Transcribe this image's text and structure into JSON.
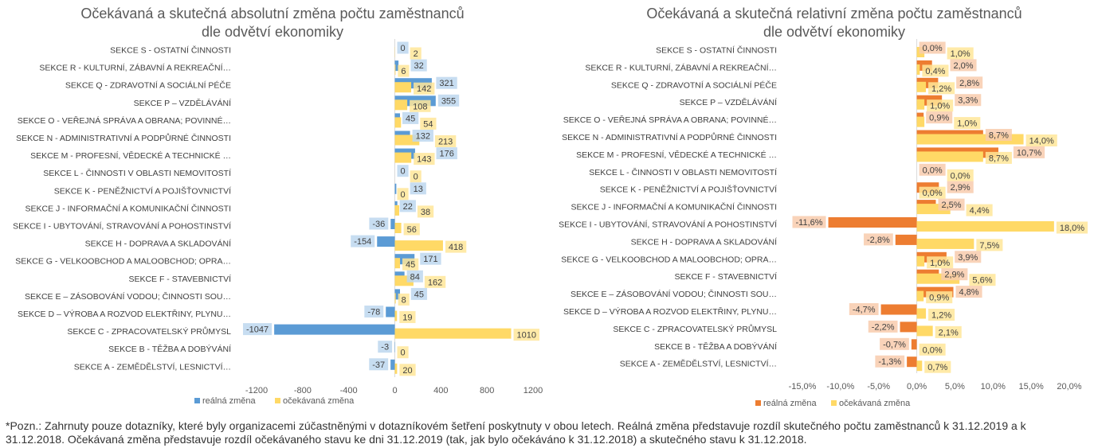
{
  "chart_data": [
    {
      "type": "bar",
      "orientation": "horizontal",
      "title_lines": [
        "Očekávaná a skutečná absolutní změna počtu zaměstnanců",
        "dle odvětví ekonomiky"
      ],
      "categories": [
        "SEKCE S - OSTATNÍ ČINNOSTI",
        "SEKCE R - KULTURNÍ, ZÁBAVNÍ A REKREAČNÍ…",
        "SEKCE Q - ZDRAVOTNÍ A SOCIÁLNÍ PÉČE",
        "SEKCE P – VZDĚLÁVÁNÍ",
        "SEKCE O - VEŘEJNÁ SPRÁVA A OBRANA; POVINNÉ…",
        "SEKCE N - ADMINISTRATIVNÍ A PODPŮRNÉ ČINNOSTI",
        "SEKCE M - PROFESNÍ, VĚDECKÉ A TECHNICKÉ …",
        "SEKCE L - ČINNOSTI V OBLASTI NEMOVITOSTÍ",
        "SEKCE K - PENĚŽNICTVÍ A POJIŠŤOVNICTVÍ",
        "SEKCE J - INFORMAČNÍ A KOMUNIKAČNÍ ČINNOSTI",
        "SEKCE I - UBYTOVÁNÍ, STRAVOVÁNÍ A POHOSTINSTVÍ",
        "SEKCE H - DOPRAVA A SKLADOVÁNÍ",
        "SEKCE G - VELKOOBCHOD A MALOOBCHOD; OPRA…",
        "SEKCE F - STAVEBNICTVÍ",
        "SEKCE E – ZÁSOBOVÁNÍ VODOU; ČINNOSTI SOU…",
        "SEKCE D – VÝROBA A ROZVOD ELEKTŘINY, PLYNU…",
        "SEKCE C - ZPRACOVATELSKÝ PRŮMYSL",
        "SEKCE B - TĚŽBA A DOBÝVÁNÍ",
        "SEKCE A - ZEMĚDĚLSTVÍ, LESNICTVÍ…"
      ],
      "series": [
        {
          "name": "reálná změna",
          "color": "#5b9bd5",
          "label_color": "#bdd7ee",
          "values": [
            0,
            32,
            321,
            355,
            45,
            132,
            176,
            0,
            13,
            22,
            -36,
            -154,
            171,
            84,
            45,
            -78,
            -1047,
            -3,
            -37
          ]
        },
        {
          "name": "očekávaná změna",
          "color": "#ffd966",
          "label_color": "#ffe699",
          "values": [
            2,
            6,
            142,
            108,
            54,
            213,
            143,
            0,
            0,
            38,
            56,
            418,
            45,
            162,
            8,
            19,
            1010,
            0,
            20
          ]
        }
      ],
      "xlim": [
        -1200,
        1200
      ],
      "xticks": [
        -1200,
        -800,
        -400,
        0,
        400,
        800,
        1200
      ],
      "xtick_labels": [
        "-1200",
        "-800",
        "-400",
        "0",
        "400",
        "800",
        "1200"
      ],
      "grid": false,
      "legend": "bottom"
    },
    {
      "type": "bar",
      "orientation": "horizontal",
      "title_lines": [
        "Očekávaná a skutečná relativní změna počtu zaměstnanců",
        "dle odvětví ekonomiky"
      ],
      "categories": [
        "SEKCE S - OSTATNÍ ČINNOSTI",
        "SEKCE R - KULTURNÍ, ZÁBAVNÍ A REKREAČNÍ…",
        "SEKCE Q - ZDRAVOTNÍ A SOCIÁLNÍ PÉČE",
        "SEKCE P – VZDĚLÁVÁNÍ",
        "SEKCE O - VEŘEJNÁ SPRÁVA A OBRANA; POVINNÉ…",
        "SEKCE N - ADMINISTRATIVNÍ A PODPŮRNÉ ČINNOSTI",
        "SEKCE M - PROFESNÍ, VĚDECKÉ A TECHNICKÉ …",
        "SEKCE L - ČINNOSTI V OBLASTI NEMOVITOSTÍ",
        "SEKCE K - PENĚŽNICTVÍ A POJIŠŤOVNICTVÍ",
        "SEKCE J - INFORMAČNÍ A KOMUNIKAČNÍ ČINNOSTI",
        "SEKCE I - UBYTOVÁNÍ, STRAVOVÁNÍ A POHOSTINSTVÍ",
        "SEKCE H - DOPRAVA A SKLADOVÁNÍ",
        "SEKCE G - VELKOOBCHOD A MALOOBCHOD; OPRA…",
        "SEKCE F - STAVEBNICTVÍ",
        "SEKCE E – ZÁSOBOVÁNÍ VODOU; ČINNOSTI SOU…",
        "SEKCE D – VÝROBA A ROZVOD ELEKTŘINY, PLYNU…",
        "SEKCE C - ZPRACOVATELSKÝ PRŮMYSL",
        "SEKCE B - TĚŽBA A DOBÝVÁNÍ",
        "SEKCE A - ZEMĚDĚLSTVÍ, LESNICTVÍ…"
      ],
      "series": [
        {
          "name": "reálná změna",
          "color": "#ed7d31",
          "label_color": "#f8cbad",
          "values": [
            0.0,
            2.0,
            2.8,
            3.3,
            0.9,
            8.7,
            10.7,
            0.0,
            2.9,
            2.5,
            -11.6,
            -2.8,
            3.9,
            2.9,
            4.8,
            -4.7,
            -2.2,
            -0.7,
            -1.3
          ],
          "labels": [
            "0,0%",
            "2,0%",
            "2,8%",
            "3,3%",
            "0,9%",
            "8,7%",
            "10,7%",
            "0,0%",
            "2,9%",
            "2,5%",
            "-11,6%",
            "-2,8%",
            "3,9%",
            "2,9%",
            "4,8%",
            "-4,7%",
            "-2,2%",
            "-0,7%",
            "-1,3%"
          ]
        },
        {
          "name": "očekávaná změna",
          "color": "#ffd966",
          "label_color": "#ffe699",
          "values": [
            1.0,
            0.4,
            1.2,
            1.0,
            1.0,
            14.0,
            8.7,
            0.0,
            0.0,
            4.4,
            18.0,
            7.5,
            1.0,
            5.6,
            0.9,
            1.2,
            2.1,
            0.0,
            0.7
          ],
          "labels": [
            "1,0%",
            "0,4%",
            "1,2%",
            "1,0%",
            "1,0%",
            "14,0%",
            "8,7%",
            "0,0%",
            "0,0%",
            "4,4%",
            "18,0%",
            "7,5%",
            "1,0%",
            "5,6%",
            "0,9%",
            "1,2%",
            "2,1%",
            "0,0%",
            "0,7%"
          ]
        }
      ],
      "xlim": [
        -15,
        20
      ],
      "xticks": [
        -15,
        -10,
        -5,
        0,
        5,
        10,
        15,
        20
      ],
      "xtick_labels": [
        "-15,0%",
        "-10,0%",
        "-5,0%",
        "0,0%",
        "5,0%",
        "10,0%",
        "15,0%",
        "20,0%"
      ],
      "grid": false,
      "legend": "bottom"
    }
  ],
  "footnote": "*Pozn.: Zahrnuty pouze dotazníky, které byly organizacemi zúčastněnými v dotazníkovém šetření poskytnuty v obou letech. Reálná změna představuje rozdíl skutečného počtu zaměstnanců k 31.12.2019 a k 31.12.2018. Očekávaná změna představuje rozdíl očekávaného stavu ke dni 31.12.2019 (tak, jak bylo očekáváno k 31.12.2018) a skutečného stavu k 31.12.2018."
}
